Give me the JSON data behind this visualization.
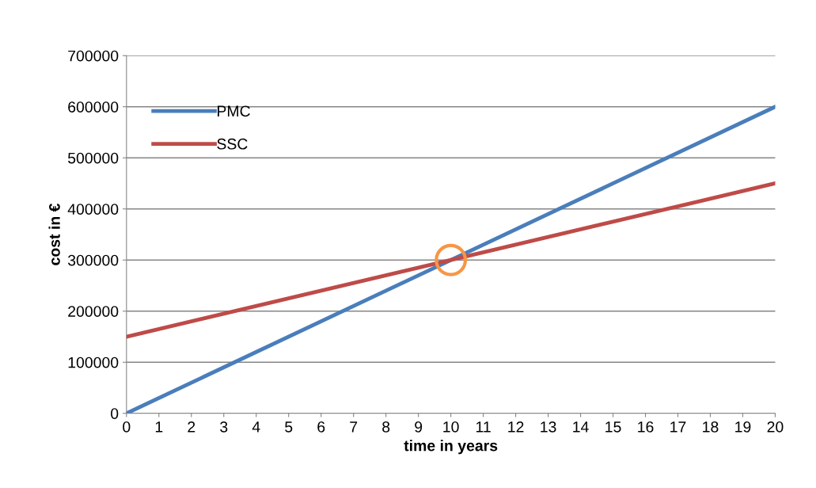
{
  "chart_data": {
    "type": "line",
    "xlabel": "time in years",
    "ylabel": "cost in €",
    "x": [
      0,
      20
    ],
    "series": [
      {
        "name": "PMC",
        "color": "#4a7ebb",
        "values": [
          0,
          600000
        ]
      },
      {
        "name": "SSC",
        "color": "#be4b48",
        "values": [
          150000,
          450000
        ]
      },
      {
        "type": "scatter",
        "x": [
          10
        ],
        "values": [
          300000
        ],
        "color": "#f79646",
        "marker": "circle"
      }
    ],
    "xlim": [
      0,
      20
    ],
    "xticks": [
      0,
      1,
      2,
      3,
      4,
      5,
      6,
      7,
      8,
      9,
      10,
      11,
      12,
      13,
      14,
      15,
      16,
      17,
      18,
      19,
      20
    ],
    "ylim": [
      0,
      700000
    ],
    "yticks": [
      0,
      100000,
      200000,
      300000,
      400000,
      500000,
      600000,
      700000
    ],
    "grid": "y",
    "legend": "top left",
    "marker": "none",
    "line_style": "solid"
  }
}
